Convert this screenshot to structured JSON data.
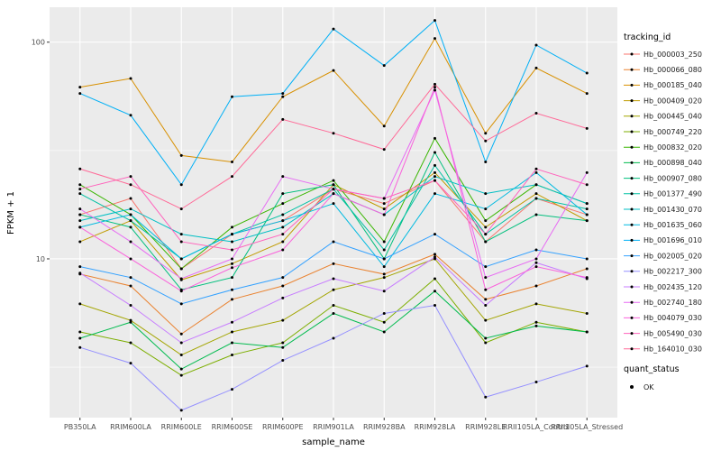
{
  "chart_data": {
    "type": "line",
    "title": "",
    "xlabel": "sample_name",
    "ylabel": "FPKM + 1",
    "y_scale": "log10",
    "ylim": [
      1.85,
      145
    ],
    "y_major_ticks": [
      10,
      100
    ],
    "y_minor_ticks": [
      3.162,
      31.62
    ],
    "grid": true,
    "panel_bg": "#EBEBEB",
    "grid_color": "#FFFFFF",
    "point_color": "#000000",
    "tick_label_color": "#4D4D4D",
    "categories": [
      "PB350LA",
      "RRIM600LA",
      "RRIM600LE",
      "RRIM600SE",
      "RRIM600PE",
      "RRIM901LA",
      "RRIM928BA",
      "RRIM928LA",
      "RRIM928LE",
      "RRII105LA_Control",
      "RRII105LA_Stressed"
    ],
    "series": [
      {
        "name": "Hb_000003_250",
        "color": "#F8766D",
        "values": [
          16,
          19,
          9,
          13,
          15,
          21,
          18,
          23,
          12,
          19,
          16
        ]
      },
      {
        "name": "Hb_000066_080",
        "color": "#EA8331",
        "values": [
          8.5,
          7.5,
          4.5,
          6.5,
          7.5,
          9.5,
          8.5,
          10.5,
          6.5,
          7.5,
          9
        ]
      },
      {
        "name": "Hb_000185_040",
        "color": "#D89000",
        "values": [
          62,
          68,
          30,
          28,
          56,
          74,
          41,
          104,
          38,
          76,
          58
        ]
      },
      {
        "name": "Hb_000409_020",
        "color": "#C09B00",
        "values": [
          12,
          15,
          8,
          9.5,
          12,
          22,
          17,
          25,
          14,
          20,
          15
        ]
      },
      {
        "name": "Hb_000445_040",
        "color": "#A3A500",
        "values": [
          6.2,
          5.2,
          3.6,
          4.6,
          5.2,
          7.2,
          8.2,
          10,
          5.2,
          6.2,
          5.6
        ]
      },
      {
        "name": "Hb_000749_220",
        "color": "#7CAE00",
        "values": [
          4.6,
          4.1,
          2.9,
          3.6,
          4.1,
          6.1,
          5.1,
          8.1,
          4.1,
          5.1,
          4.6
        ]
      },
      {
        "name": "Hb_000832_020",
        "color": "#39B600",
        "values": [
          22,
          16,
          9,
          14,
          18,
          23,
          12,
          36,
          15,
          22,
          18
        ]
      },
      {
        "name": "Hb_000898_040",
        "color": "#00BB4E",
        "values": [
          4.3,
          5.1,
          3.1,
          4.1,
          3.9,
          5.6,
          4.6,
          7.1,
          4.3,
          4.9,
          4.6
        ]
      },
      {
        "name": "Hb_000907_080",
        "color": "#00BF7D",
        "values": [
          16,
          14,
          7.2,
          8.2,
          20,
          22,
          10,
          31,
          12,
          16,
          15
        ]
      },
      {
        "name": "Hb_001377_490",
        "color": "#00C1A3",
        "values": [
          20,
          15,
          10,
          13,
          16,
          21,
          11,
          27,
          13,
          19,
          17
        ]
      },
      {
        "name": "Hb_001430_070",
        "color": "#00BFC4",
        "values": [
          15,
          17,
          13,
          12,
          14,
          20,
          16,
          24,
          20,
          22,
          18
        ]
      },
      {
        "name": "Hb_001635_060",
        "color": "#00BAE0",
        "values": [
          14,
          16,
          10,
          13,
          15,
          18,
          9.2,
          20,
          17,
          25,
          16
        ]
      },
      {
        "name": "Hb_001696_010",
        "color": "#00B0F6",
        "values": [
          58,
          46,
          22,
          56,
          58,
          115,
          78,
          126,
          28,
          97,
          72
        ]
      },
      {
        "name": "Hb_002005_020",
        "color": "#35A2FF",
        "values": [
          9.2,
          8.2,
          6.2,
          7.2,
          8.2,
          12,
          10,
          13,
          9.2,
          11,
          10
        ]
      },
      {
        "name": "Hb_002217_300",
        "color": "#9590FF",
        "values": [
          3.9,
          3.3,
          2.0,
          2.5,
          3.4,
          4.3,
          5.6,
          6.1,
          2.3,
          2.7,
          3.2
        ]
      },
      {
        "name": "Hb_002435_120",
        "color": "#C77CFF",
        "values": [
          8.6,
          6.1,
          4.1,
          5.1,
          6.6,
          8.1,
          7.1,
          10.2,
          6.1,
          9.6,
          8.1
        ]
      },
      {
        "name": "Hb_002740_180",
        "color": "#E76BF3",
        "values": [
          17,
          12,
          8.1,
          10,
          24,
          21,
          19,
          60,
          8.2,
          10,
          25
        ]
      },
      {
        "name": "Hb_004079_030",
        "color": "#FA62DB",
        "values": [
          14,
          10,
          7.1,
          9.1,
          11,
          20,
          16,
          62,
          7.2,
          9.2,
          8.2
        ]
      },
      {
        "name": "Hb_005490_030",
        "color": "#FF62BC",
        "values": [
          21,
          24,
          12,
          11,
          13,
          21,
          19,
          23,
          13,
          26,
          22
        ]
      },
      {
        "name": "Hb_164010_030",
        "color": "#FF6A98",
        "values": [
          26,
          22,
          17,
          24,
          44,
          38,
          32,
          64,
          35,
          47,
          40
        ]
      }
    ],
    "legend": {
      "color_title": "tracking_id",
      "shape_title": "quant_status",
      "shape_entries": [
        {
          "label": "OK"
        }
      ],
      "position": "right"
    }
  }
}
